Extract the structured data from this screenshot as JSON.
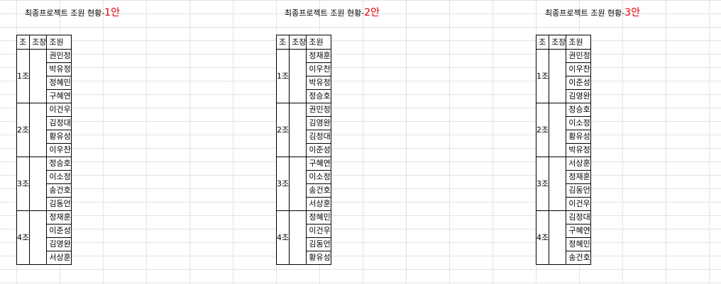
{
  "plans": [
    {
      "title": "최종프로젝트 조원 현황-",
      "suffix": "1안",
      "headers": [
        "조",
        "조장",
        "조원"
      ],
      "groups": [
        {
          "name": "1조",
          "leader": "",
          "members": [
            "권민정",
            "박유정",
            "정혜민",
            "구혜연"
          ]
        },
        {
          "name": "2조",
          "leader": "",
          "members": [
            "이건우",
            "김정대",
            "황유성",
            "이우찬"
          ]
        },
        {
          "name": "3조",
          "leader": "",
          "members": [
            "정승호",
            "이소정",
            "송건호",
            "김동언"
          ]
        },
        {
          "name": "4조",
          "leader": "",
          "members": [
            "정재훈",
            "이준성",
            "김영완",
            "서상훈"
          ]
        }
      ]
    },
    {
      "title": "최종프로젝트 조원 현황-",
      "suffix": "2안",
      "headers": [
        "조",
        "조장",
        "조원"
      ],
      "groups": [
        {
          "name": "1조",
          "leader": "",
          "members": [
            "정재훈",
            "이우찬",
            "박유정",
            "정승호"
          ]
        },
        {
          "name": "2조",
          "leader": "",
          "members": [
            "권민정",
            "김영완",
            "김정대",
            "이준성"
          ]
        },
        {
          "name": "3조",
          "leader": "",
          "members": [
            "구혜연",
            "이소정",
            "송건호",
            "서상훈"
          ]
        },
        {
          "name": "4조",
          "leader": "",
          "members": [
            "정혜민",
            "이건우",
            "김동언",
            "황유성"
          ]
        }
      ]
    },
    {
      "title": "최종프로젝트 조원 현황-",
      "suffix": "3안",
      "headers": [
        "조",
        "조장",
        "조원"
      ],
      "groups": [
        {
          "name": "1조",
          "leader": "",
          "members": [
            "권민정",
            "이우찬",
            "이준성",
            "김영완"
          ]
        },
        {
          "name": "2조",
          "leader": "",
          "members": [
            "정승호",
            "이소정",
            "황유성",
            "박유정"
          ]
        },
        {
          "name": "3조",
          "leader": "",
          "members": [
            "서상훈",
            "정재훈",
            "김동언",
            "이건우"
          ]
        },
        {
          "name": "4조",
          "leader": "",
          "members": [
            "김정대",
            "구혜연",
            "정혜민",
            "송건호"
          ]
        }
      ]
    }
  ]
}
